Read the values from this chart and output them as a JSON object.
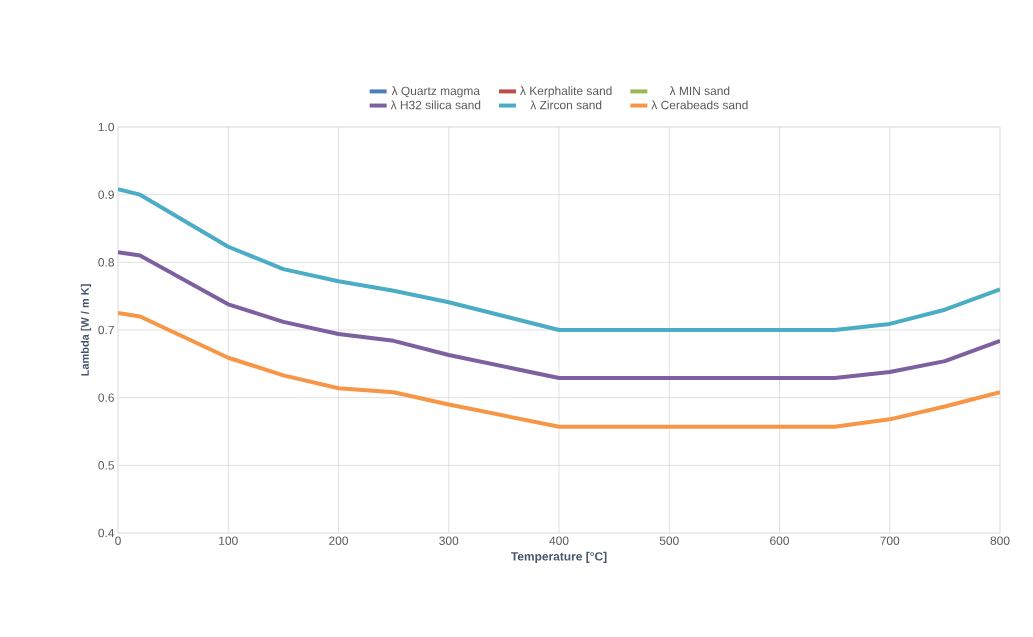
{
  "chart_data": {
    "type": "line",
    "xlabel": "Temperature [°C]",
    "ylabel": "Lambda [W / m K]",
    "x": [
      0,
      20,
      100,
      150,
      200,
      250,
      300,
      400,
      500,
      600,
      650,
      700,
      750,
      800
    ],
    "series": [
      {
        "name": "λ  Quartz  magma",
        "color": "#4a7ebb",
        "values": [
          null,
          null,
          null,
          null,
          null,
          null,
          null,
          null,
          null,
          null,
          null,
          null,
          null,
          null
        ]
      },
      {
        "name": "λ  Kerphalite sand",
        "color": "#be4b48",
        "values": [
          null,
          null,
          null,
          null,
          null,
          null,
          null,
          null,
          null,
          null,
          null,
          null,
          null,
          null
        ]
      },
      {
        "name": "λ  MIN sand",
        "color": "#98b954",
        "values": [
          null,
          null,
          null,
          null,
          null,
          null,
          null,
          null,
          null,
          null,
          null,
          null,
          null,
          null
        ]
      },
      {
        "name": "λ  H32 silica sand",
        "color": "#7d60a0",
        "values": [
          0.815,
          0.81,
          0.738,
          0.712,
          0.694,
          0.684,
          0.663,
          0.629,
          0.629,
          0.629,
          0.629,
          0.638,
          0.654,
          0.684
        ]
      },
      {
        "name": "λ  Zircon sand",
        "color": "#4bacc6",
        "values": [
          0.908,
          0.9,
          0.823,
          0.79,
          0.772,
          0.758,
          0.741,
          0.7,
          0.7,
          0.7,
          0.7,
          0.709,
          0.73,
          0.76
        ]
      },
      {
        "name": "λ  Cerabeads sand",
        "color": "#f79646",
        "values": [
          0.725,
          0.72,
          0.659,
          0.633,
          0.614,
          0.608,
          0.59,
          0.557,
          0.557,
          0.557,
          0.557,
          0.568,
          0.587,
          0.608
        ]
      }
    ],
    "xlim": [
      0,
      800
    ],
    "ylim": [
      0.4,
      1.0
    ],
    "xticks": [
      0,
      100,
      200,
      300,
      400,
      500,
      600,
      700,
      800
    ],
    "yticks": [
      0.4,
      0.5,
      0.6,
      0.7,
      0.8,
      0.9,
      {
        "value": 1.0,
        "label": "1.0"
      }
    ],
    "grid": true,
    "legend": "top",
    "marker": "none",
    "line_style": "solid"
  }
}
